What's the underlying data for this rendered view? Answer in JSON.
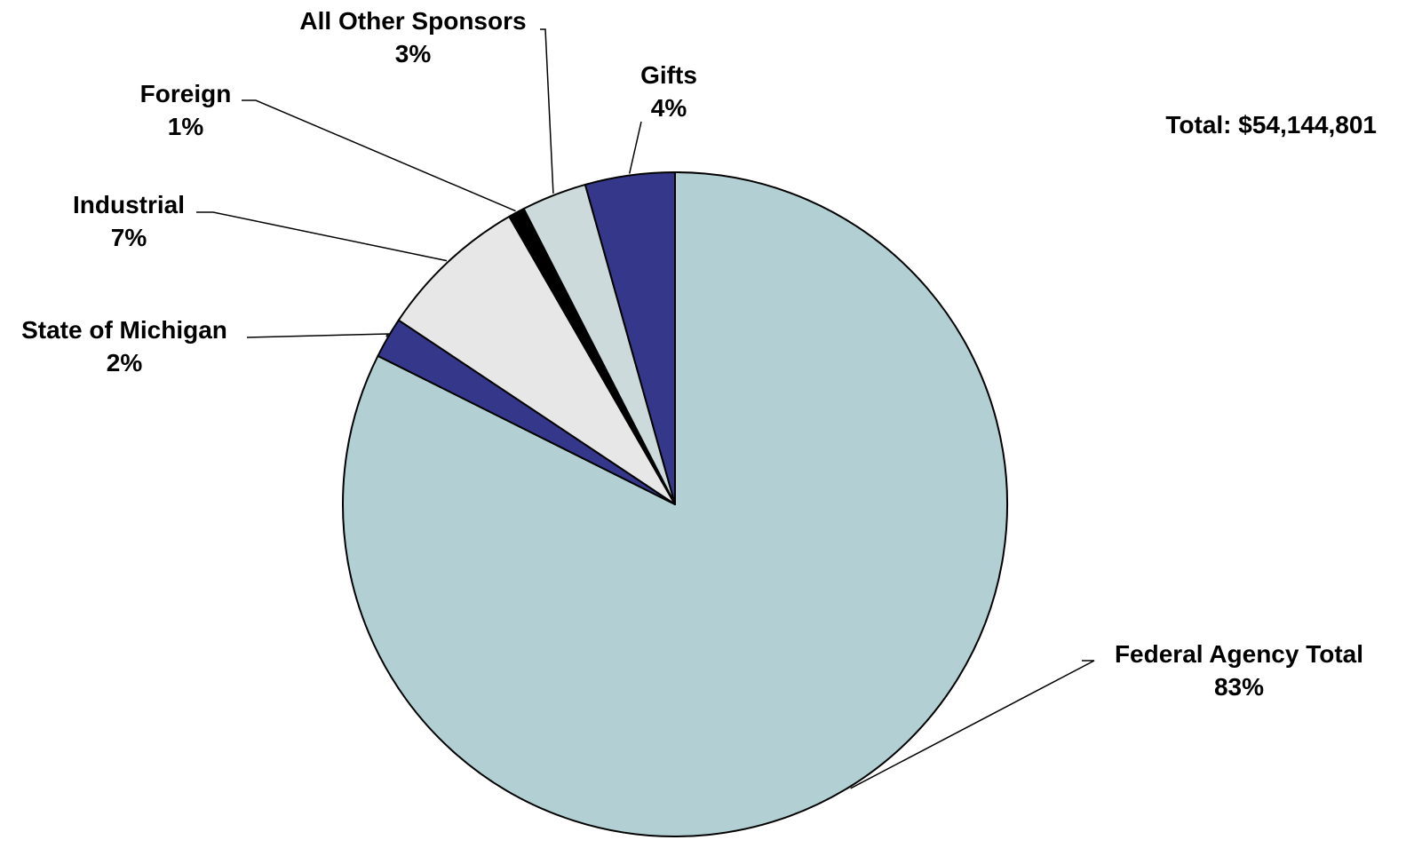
{
  "chart_data": {
    "type": "pie",
    "title": "",
    "total_label": "Total:  $54,144,801",
    "start": "12 o'clock, clockwise",
    "slices": [
      {
        "label": "Federal Agency Total",
        "pct_label": "83%",
        "value": 83.2,
        "color": "#b2d0d4"
      },
      {
        "label": "State of Michigan",
        "pct_label": "2%",
        "value": 2.0,
        "color": "#35388a"
      },
      {
        "label": "Industrial",
        "pct_label": "7%",
        "value": 7.4,
        "color": "#e7e7e7"
      },
      {
        "label": "Foreign",
        "pct_label": "1%",
        "value": 0.8,
        "color": "#000000"
      },
      {
        "label": "All Other Sponsors",
        "pct_label": "3%",
        "value": 3.2,
        "color": "#cddadb"
      },
      {
        "label": "Gifts",
        "pct_label": "4%",
        "value": 4.4,
        "color": "#35388a"
      }
    ]
  }
}
